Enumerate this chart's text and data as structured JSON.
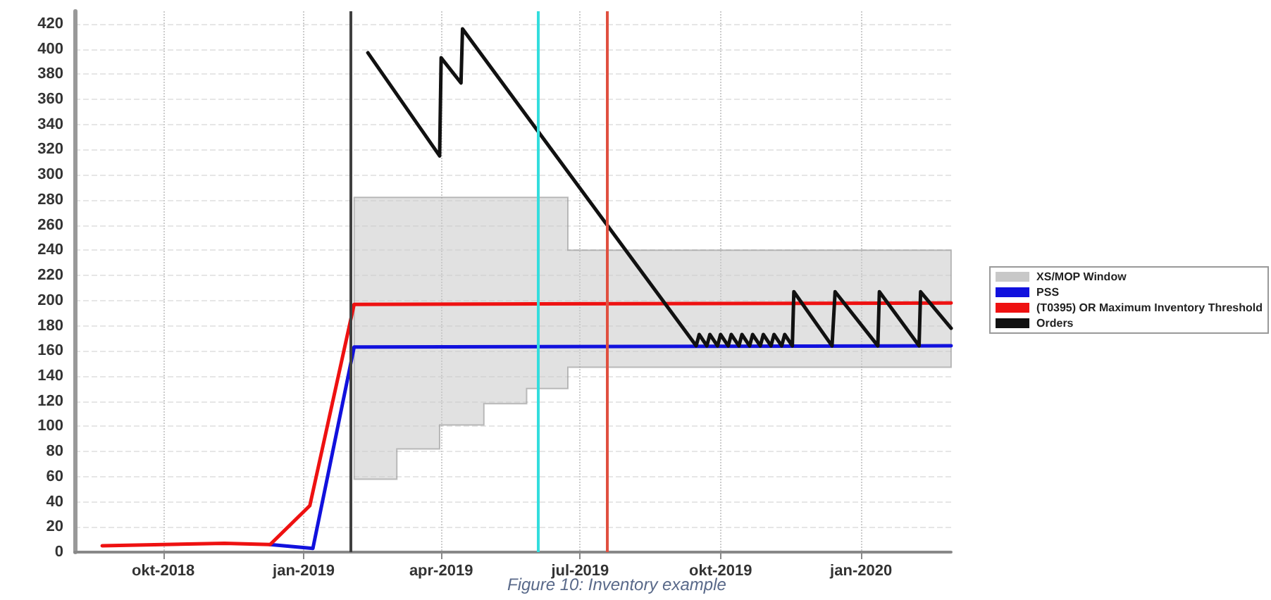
{
  "chart_data": {
    "type": "line",
    "annotations": [
      "Figure 10: Inventory example"
    ],
    "xlim": [
      "2018-08-04",
      "2020-02-29"
    ],
    "xticks": [
      {
        "value": "2018-10-01",
        "label": "okt-2018"
      },
      {
        "value": "2019-01-01",
        "label": "jan-2019"
      },
      {
        "value": "2019-04-01",
        "label": "apr-2019"
      },
      {
        "value": "2019-07-01",
        "label": "jul-2019"
      },
      {
        "value": "2019-10-01",
        "label": "okt-2019"
      },
      {
        "value": "2020-01-01",
        "label": "jan-2020"
      }
    ],
    "ylim": [
      0,
      430
    ],
    "yticks": [
      0,
      20,
      40,
      60,
      80,
      100,
      120,
      140,
      160,
      180,
      200,
      220,
      240,
      260,
      280,
      300,
      320,
      340,
      360,
      380,
      400,
      420
    ],
    "grid": true,
    "legend": "right",
    "marker": "none",
    "line_style": "solid",
    "series": [
      {
        "name": "XS/MOP Window",
        "type": "area",
        "color": "#c8c8c8",
        "x": [
          "2019-02-03",
          "2019-03-03",
          "2019-03-03",
          "2019-03-31",
          "2019-03-31",
          "2019-04-29",
          "2019-04-29",
          "2019-05-27",
          "2019-05-27",
          "2019-06-23",
          "2019-06-23",
          "2020-02-29"
        ],
        "values": [
          null,
          null,
          null,
          null,
          null,
          null,
          null,
          null,
          null,
          null,
          null,
          null
        ],
        "lower": [
          58,
          58,
          82,
          82,
          101,
          101,
          118,
          118,
          130,
          130,
          147,
          147
        ],
        "upper": [
          282,
          282,
          282,
          282,
          282,
          282,
          282,
          282,
          282,
          282,
          240,
          240
        ]
      },
      {
        "name": "PSS",
        "type": "line",
        "color": "#1111dd",
        "x": [
          "2018-12-10",
          "2019-01-07",
          "2019-02-03",
          "2020-02-29"
        ],
        "values": [
          6,
          3,
          163,
          164
        ]
      },
      {
        "name": "(T0395) OR Maximum Inventory Threshold",
        "type": "line",
        "color": "#ee1111",
        "x": [
          "2018-08-22",
          "2018-11-10",
          "2018-12-10",
          "2019-01-05",
          "2019-02-03",
          "2020-02-29"
        ],
        "values": [
          5,
          7,
          6,
          37,
          197,
          198
        ]
      },
      {
        "name": "Orders",
        "type": "line",
        "color": "#111111",
        "x": [
          "2019-02-12",
          "2019-03-31",
          "2019-04-01",
          "2019-04-14",
          "2019-04-15",
          "2019-09-15",
          "2019-09-17",
          "2019-09-22",
          "2019-09-24",
          "2019-09-29",
          "2019-10-01",
          "2019-10-06",
          "2019-10-08",
          "2019-10-13",
          "2019-10-15",
          "2019-10-20",
          "2019-10-22",
          "2019-10-27",
          "2019-10-29",
          "2019-11-03",
          "2019-11-05",
          "2019-11-10",
          "2019-11-12",
          "2019-11-17",
          "2019-11-18",
          "2019-12-13",
          "2019-12-15",
          "2020-01-12",
          "2020-01-13",
          "2020-02-08",
          "2020-02-09",
          "2020-02-29"
        ],
        "values": [
          397,
          315,
          393,
          373,
          416,
          164,
          173,
          164,
          173,
          164,
          173,
          164,
          173,
          164,
          173,
          164,
          173,
          164,
          173,
          164,
          173,
          164,
          173,
          164,
          207,
          164,
          207,
          164,
          207,
          164,
          207,
          178
        ]
      }
    ],
    "ref_lines": [
      {
        "axis": "x",
        "value": "2019-02-01",
        "color": "#404040"
      },
      {
        "axis": "x",
        "value": "2019-06-03",
        "color": "#33dddd"
      },
      {
        "axis": "x",
        "value": "2019-07-19",
        "color": "#e05040"
      }
    ]
  }
}
